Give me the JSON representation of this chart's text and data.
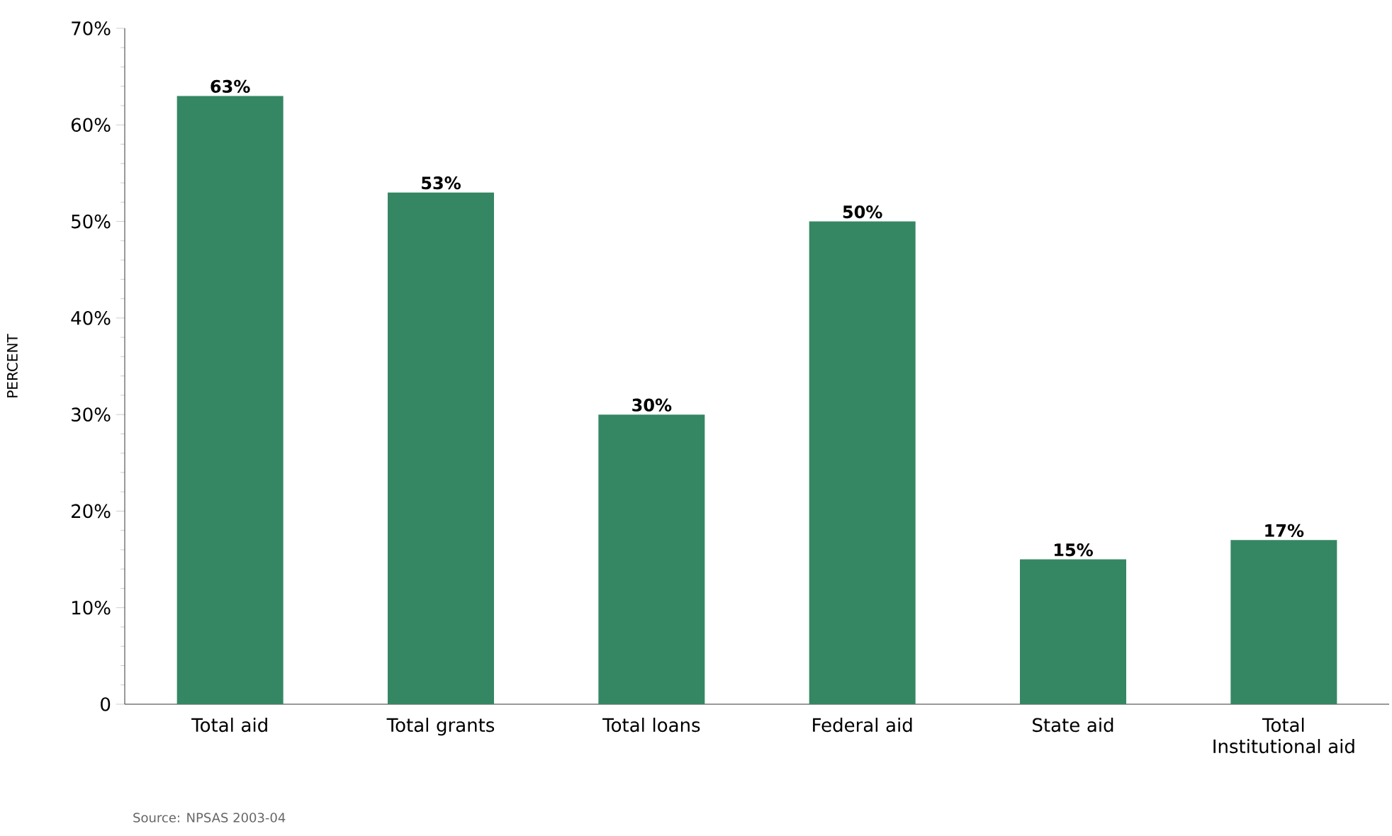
{
  "chart_data": {
    "type": "bar",
    "ylabel": "PERCENT",
    "categories": [
      "Total aid",
      "Total grants",
      "Total loans",
      "Federal aid",
      "State aid",
      "Total Institutional aid"
    ],
    "values": [
      63,
      53,
      30,
      50,
      15,
      17
    ],
    "value_labels": [
      "63%",
      "53%",
      "30%",
      "50%",
      "15%",
      "17%"
    ],
    "color": "#358763",
    "ylim": [
      0,
      70
    ],
    "yticks": [
      0,
      {
        "value": 10,
        "label": "10%"
      },
      {
        "value": 20,
        "label": "20%"
      },
      {
        "value": 30,
        "label": "30%"
      },
      {
        "value": 40,
        "label": "40%"
      },
      {
        "value": 50,
        "label": "50%"
      },
      {
        "value": 60,
        "label": "60%"
      },
      {
        "value": 70,
        "label": "70%"
      }
    ],
    "annotations": [
      "Source: NPSAS 2003-04"
    ]
  }
}
